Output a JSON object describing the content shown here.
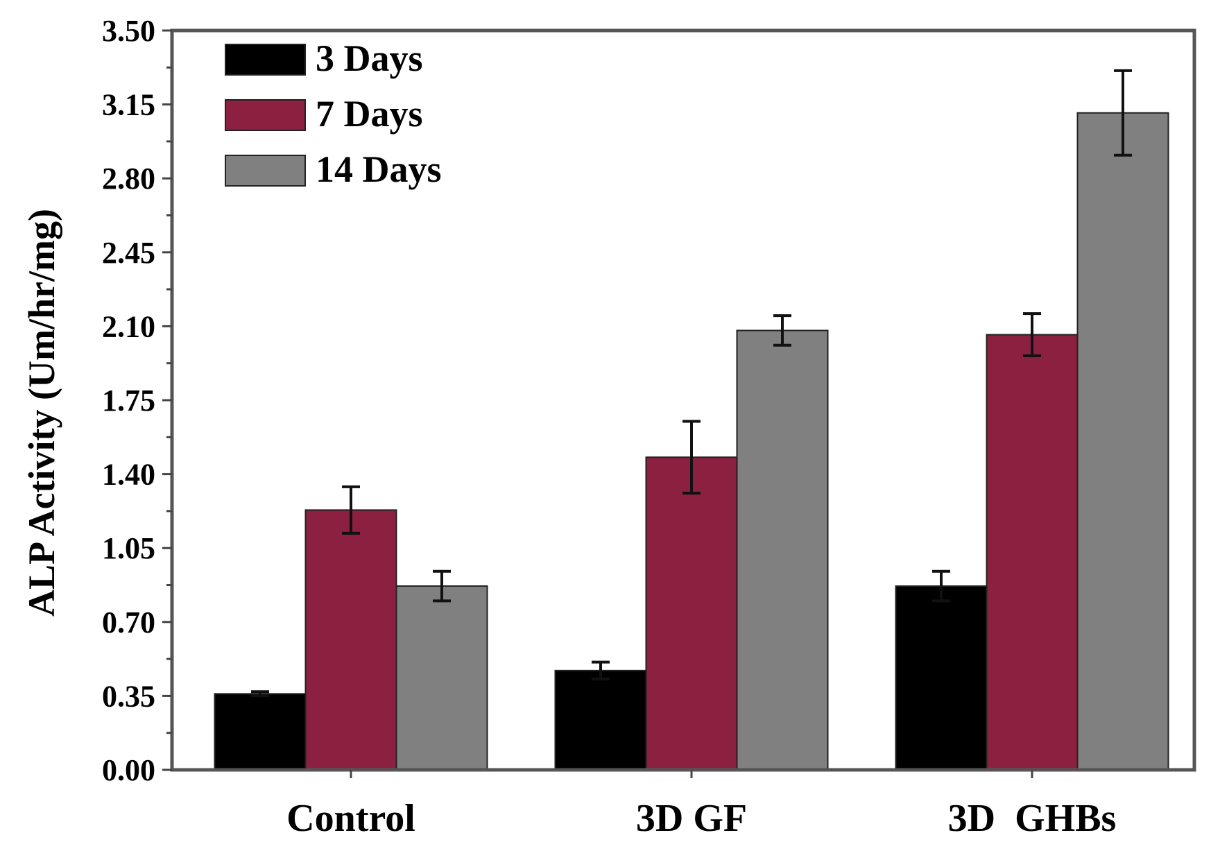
{
  "chart_data": {
    "type": "bar",
    "title": "",
    "xlabel": "",
    "ylabel": "ALP Activity (Um/hr/mg)",
    "categories": [
      "Control",
      "3D GF",
      "3D  GHBs"
    ],
    "ylim": [
      0,
      3.5
    ],
    "yticks": [
      "0.00",
      "0.35",
      "0.70",
      "1.05",
      "1.40",
      "1.75",
      "2.10",
      "2.45",
      "2.80",
      "3.15",
      "3.50"
    ],
    "legend_position": "top-left",
    "series": [
      {
        "name": "3 Days",
        "color": "#000000",
        "values": [
          0.36,
          0.47,
          0.87
        ],
        "errors": [
          0.01,
          0.04,
          0.07
        ]
      },
      {
        "name": "7 Days",
        "color": "#8B2040",
        "values": [
          1.23,
          1.48,
          2.06
        ],
        "errors": [
          0.11,
          0.17,
          0.1
        ]
      },
      {
        "name": "14 Days",
        "color": "#808080",
        "values": [
          0.87,
          2.08,
          3.11
        ],
        "errors": [
          0.07,
          0.07,
          0.2
        ]
      }
    ]
  }
}
